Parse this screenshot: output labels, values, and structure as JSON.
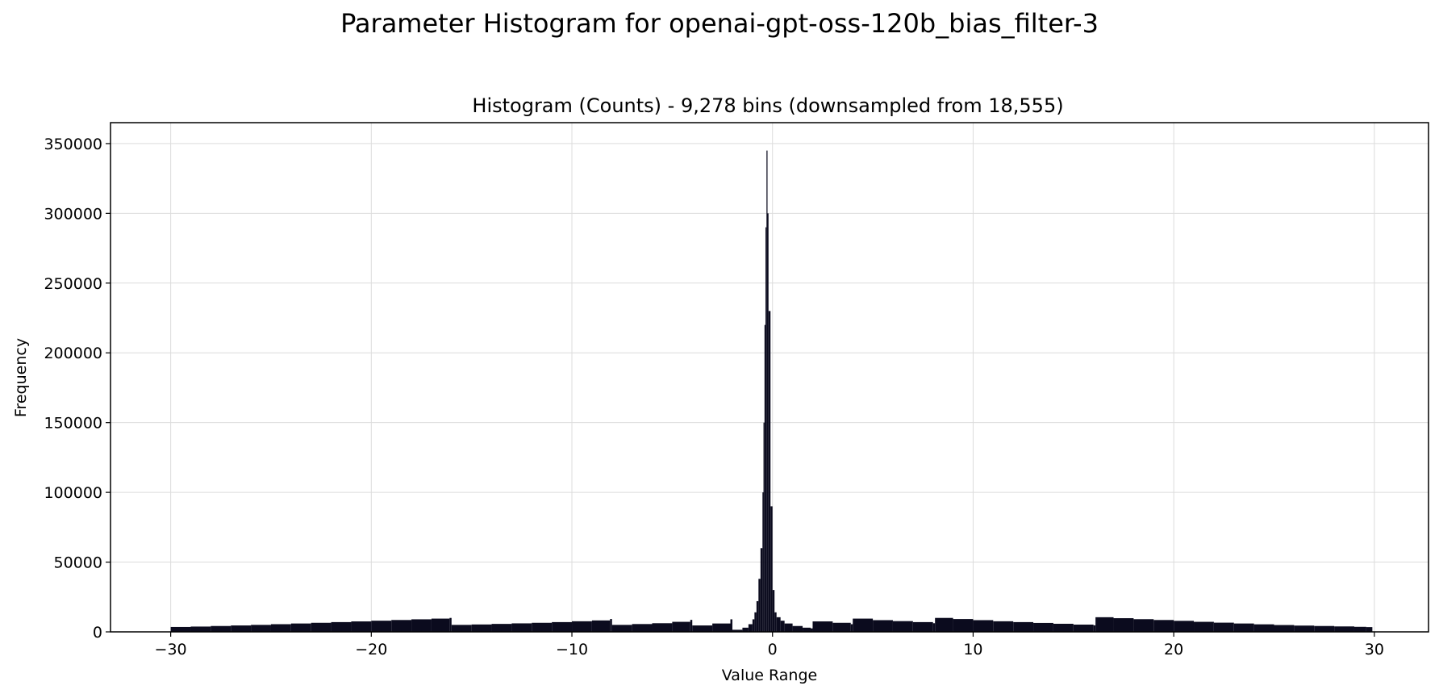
{
  "chart_data": {
    "type": "bar",
    "title": "Parameter Histogram for openai-gpt-oss-120b_bias_filter-3",
    "subtitle": "Histogram (Counts) - 9,278 bins (downsampled from 18,555)",
    "xlabel": "Value Range",
    "ylabel": "Frequency",
    "xlim": [
      -33,
      32.7
    ],
    "ylim": [
      0,
      365000
    ],
    "x_ticks": [
      -30,
      -20,
      -10,
      0,
      10,
      20,
      30
    ],
    "x_tick_labels": [
      "−30",
      "−20",
      "−10",
      "0",
      "10",
      "20",
      "30"
    ],
    "y_ticks": [
      0,
      50000,
      100000,
      150000,
      200000,
      250000,
      300000,
      350000
    ],
    "y_tick_labels": [
      "0",
      "50000",
      "100000",
      "150000",
      "200000",
      "250000",
      "300000",
      "350000"
    ],
    "grid": true,
    "bar_color": "#0b0b1e",
    "series": [
      {
        "x": [
          -30,
          -29,
          -28,
          -27,
          -26,
          -25,
          -24,
          -23,
          -22,
          -21,
          -20,
          -19,
          -18,
          -17,
          -16.1,
          -16,
          -15,
          -14,
          -13,
          -12,
          -11,
          -10,
          -9,
          -8.1,
          -8,
          -7,
          -6,
          -5,
          -4.1,
          -4,
          -3,
          -2.1,
          -2,
          -1.5,
          -1.2,
          -1.0,
          -0.9,
          -0.8,
          -0.7,
          -0.6,
          -0.5,
          -0.45,
          -0.4,
          -0.35,
          -0.3,
          -0.25,
          -0.2,
          -0.1,
          0,
          0.1,
          0.2,
          0.4,
          0.6,
          1.0,
          1.5,
          1.9,
          2,
          3,
          3.9,
          4,
          5,
          6,
          7,
          8,
          8.1,
          9,
          10,
          11,
          12,
          13,
          14,
          15,
          16,
          16.1,
          17,
          18,
          19,
          20,
          21,
          22,
          23,
          24,
          25,
          26,
          27,
          28,
          29,
          29.6
        ],
        "values": [
          3500,
          3800,
          4200,
          4600,
          5000,
          5500,
          6000,
          6500,
          7000,
          7500,
          8000,
          8500,
          9000,
          9500,
          10000,
          5000,
          5300,
          5700,
          6100,
          6500,
          7000,
          7600,
          8200,
          9200,
          5000,
          5600,
          6200,
          7200,
          8600,
          4600,
          6000,
          9000,
          1500,
          3000,
          5500,
          9000,
          14000,
          22000,
          38000,
          60000,
          100000,
          150000,
          220000,
          290000,
          345000,
          300000,
          230000,
          90000,
          30000,
          14000,
          10500,
          8000,
          6000,
          4200,
          3000,
          2500,
          7500,
          6500,
          5500,
          9500,
          8400,
          7700,
          7000,
          6200,
          10000,
          9200,
          8400,
          7600,
          7000,
          6400,
          5800,
          5200,
          4700,
          10500,
          9800,
          9100,
          8500,
          7900,
          7200,
          6600,
          6000,
          5400,
          4900,
          4500,
          4200,
          3900,
          3600,
          3400
        ]
      }
    ]
  }
}
